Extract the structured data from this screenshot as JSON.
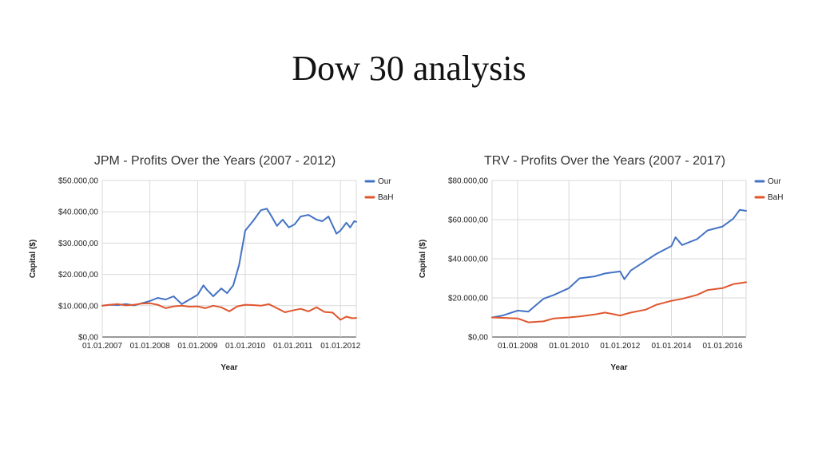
{
  "slide": {
    "title": "Dow 30 analysis"
  },
  "chart_data": [
    {
      "type": "line",
      "title": "JPM - Profits Over the Years  (2007 - 2012)",
      "xlabel": "Year",
      "ylabel": "Capital ($)",
      "xlim": [
        "2007-01-01",
        "2012-05-01"
      ],
      "ylim": [
        0,
        50000
      ],
      "x_ticks": [
        "2007-01-01",
        "2008-01-01",
        "2009-01-01",
        "2010-01-01",
        "2011-01-01",
        "2012-01-01"
      ],
      "x_tick_labels": [
        "01.01.2007",
        "01.01.2008",
        "01.01.2009",
        "01.01.2010",
        "01.01.2011",
        "01.01.2012"
      ],
      "y_ticks": [
        0,
        10000,
        20000,
        30000,
        40000,
        50000
      ],
      "y_tick_labels": [
        "$0,00",
        "$10.000,00",
        "$20.000,00",
        "$30.000,00",
        "$40.000,00",
        "$50.000,00"
      ],
      "grid": true,
      "legend": "right",
      "series": [
        {
          "name": "Our",
          "color": "#4472c4",
          "x": [
            "2007-01-01",
            "2007-03-01",
            "2007-05-01",
            "2007-07-01",
            "2007-09-01",
            "2007-11-01",
            "2008-01-01",
            "2008-03-01",
            "2008-05-01",
            "2008-07-01",
            "2008-09-01",
            "2008-11-01",
            "2009-01-01",
            "2009-02-15",
            "2009-03-15",
            "2009-05-01",
            "2009-07-01",
            "2009-08-15",
            "2009-10-01",
            "2009-11-15",
            "2010-01-01",
            "2010-03-01",
            "2010-05-01",
            "2010-06-15",
            "2010-07-15",
            "2010-09-01",
            "2010-10-15",
            "2010-12-01",
            "2011-01-15",
            "2011-03-01",
            "2011-05-01",
            "2011-07-01",
            "2011-08-15",
            "2011-10-01",
            "2011-12-01",
            "2012-01-01",
            "2012-02-15",
            "2012-03-15",
            "2012-04-15",
            "2012-05-01"
          ],
          "y": [
            10000,
            10300,
            10200,
            10500,
            10100,
            10800,
            11500,
            12500,
            12000,
            13000,
            10500,
            12000,
            13500,
            16500,
            15000,
            13000,
            15500,
            14000,
            16500,
            23000,
            34000,
            37000,
            40500,
            41000,
            39000,
            35500,
            37500,
            35000,
            36000,
            38500,
            39000,
            37500,
            37000,
            38500,
            33000,
            34000,
            36500,
            35000,
            37000,
            36800
          ]
        },
        {
          "name": "BaH",
          "color": "#e0562d",
          "x": [
            "2007-01-01",
            "2007-03-01",
            "2007-05-01",
            "2007-07-01",
            "2007-09-01",
            "2007-11-01",
            "2008-01-01",
            "2008-03-01",
            "2008-05-01",
            "2008-07-01",
            "2008-09-01",
            "2008-11-01",
            "2009-01-01",
            "2009-03-01",
            "2009-05-01",
            "2009-07-01",
            "2009-09-01",
            "2009-11-01",
            "2010-01-01",
            "2010-03-01",
            "2010-05-01",
            "2010-07-01",
            "2010-09-01",
            "2010-11-01",
            "2011-01-01",
            "2011-03-01",
            "2011-05-01",
            "2011-07-01",
            "2011-09-01",
            "2011-11-01",
            "2012-01-01",
            "2012-02-15",
            "2012-04-01",
            "2012-05-01"
          ],
          "y": [
            10000,
            10300,
            10500,
            10100,
            10300,
            10700,
            10800,
            10300,
            9200,
            9800,
            10000,
            9700,
            9800,
            9200,
            10000,
            9500,
            8200,
            9800,
            10300,
            10200,
            10000,
            10500,
            9200,
            7900,
            8500,
            9000,
            8200,
            9500,
            8000,
            7800,
            5500,
            6500,
            6000,
            6100
          ]
        }
      ]
    },
    {
      "type": "line",
      "title": "TRV - Profits Over the Years  (2007 - 2017)",
      "xlabel": "Year",
      "ylabel": "Capital ($)",
      "xlim": [
        "2007-01-01",
        "2016-12-01"
      ],
      "ylim": [
        0,
        80000
      ],
      "x_ticks": [
        "2008-01-01",
        "2010-01-01",
        "2012-01-01",
        "2014-01-01",
        "2016-01-01"
      ],
      "x_tick_labels": [
        "01.01.2008",
        "01.01.2010",
        "01.01.2012",
        "01.01.2014",
        "01.01.2016"
      ],
      "y_ticks": [
        0,
        20000,
        40000,
        60000,
        80000
      ],
      "y_tick_labels": [
        "$0,00",
        "$20.000,00",
        "$40.000,00",
        "$60.000,00",
        "$80.000,00"
      ],
      "grid": true,
      "legend": "right",
      "series": [
        {
          "name": "Our",
          "color": "#4472c4",
          "x": [
            "2007-01-01",
            "2007-06-01",
            "2008-01-01",
            "2008-06-01",
            "2009-01-01",
            "2009-06-01",
            "2010-01-01",
            "2010-06-01",
            "2011-01-01",
            "2011-06-01",
            "2012-01-01",
            "2012-03-01",
            "2012-06-01",
            "2013-01-01",
            "2013-06-01",
            "2014-01-01",
            "2014-03-01",
            "2014-06-01",
            "2015-01-01",
            "2015-06-01",
            "2016-01-01",
            "2016-06-01",
            "2016-09-01",
            "2016-12-01"
          ],
          "y": [
            10000,
            11000,
            13500,
            13000,
            19500,
            21500,
            25000,
            30000,
            31000,
            32500,
            33500,
            29500,
            34000,
            39000,
            42500,
            46500,
            51000,
            47000,
            50000,
            54500,
            56500,
            60500,
            65000,
            64500
          ]
        },
        {
          "name": "BaH",
          "color": "#e0562d",
          "x": [
            "2007-01-01",
            "2007-06-01",
            "2008-01-01",
            "2008-06-01",
            "2009-01-01",
            "2009-06-01",
            "2010-01-01",
            "2010-06-01",
            "2011-01-01",
            "2011-06-01",
            "2012-01-01",
            "2012-06-01",
            "2013-01-01",
            "2013-06-01",
            "2014-01-01",
            "2014-06-01",
            "2015-01-01",
            "2015-06-01",
            "2016-01-01",
            "2016-06-01",
            "2016-12-01"
          ],
          "y": [
            10000,
            9800,
            9500,
            7500,
            8000,
            9500,
            10000,
            10500,
            11500,
            12500,
            11000,
            12500,
            14000,
            16500,
            18500,
            19500,
            21500,
            24000,
            25000,
            27000,
            28000
          ]
        }
      ]
    }
  ]
}
